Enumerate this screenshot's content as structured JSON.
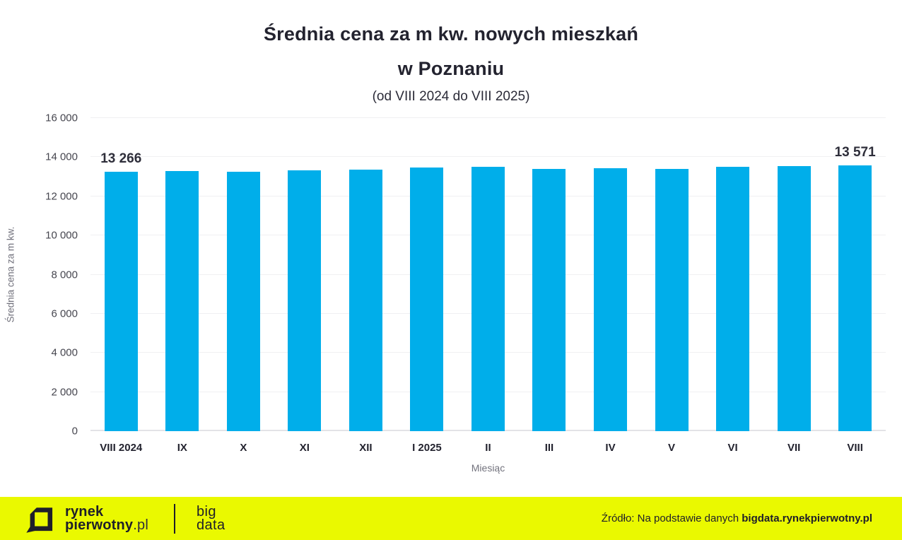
{
  "header": {
    "title_line1": "Średnia cena za m kw. nowych mieszkań",
    "title_line2": "w Poznaniu",
    "subtitle": "(od VIII 2024 do VIII 2025)"
  },
  "chart_data": {
    "type": "bar",
    "title": "Średnia cena za m kw. nowych mieszkań w Poznaniu",
    "subtitle": "(od VIII 2024 do VIII 2025)",
    "xlabel": "Miesiąc",
    "ylabel": "Średnia cena za m kw.",
    "ylim": [
      0,
      16000
    ],
    "ytick_step": 2000,
    "grid": true,
    "legend": false,
    "bar_color": "#00AEEA",
    "categories": [
      "VIII 2024",
      "IX",
      "X",
      "XI",
      "XII",
      "I 2025",
      "II",
      "III",
      "IV",
      "V",
      "VI",
      "VII",
      "VIII"
    ],
    "values": [
      13266,
      13305,
      13270,
      13340,
      13370,
      13460,
      13495,
      13390,
      13425,
      13415,
      13520,
      13550,
      13571
    ],
    "point_labels": [
      "13 266",
      "",
      "",
      "",
      "",
      "",
      "",
      "",
      "",
      "",
      "",
      "",
      "13 571"
    ],
    "yticks": [
      {
        "value": 0,
        "label": "0"
      },
      {
        "value": 2000,
        "label": "2 000"
      },
      {
        "value": 4000,
        "label": "4 000"
      },
      {
        "value": 6000,
        "label": "6 000"
      },
      {
        "value": 8000,
        "label": "8 000"
      },
      {
        "value": 10000,
        "label": "10 000"
      },
      {
        "value": 12000,
        "label": "12 000"
      },
      {
        "value": 14000,
        "label": "14 000"
      },
      {
        "value": 16000,
        "label": "16 000"
      }
    ]
  },
  "footer": {
    "logo": {
      "line1": "rynek",
      "line2": "pierwotny",
      "suffix": ".pl",
      "big": "big",
      "data": "data"
    },
    "source_prefix": "Źródło: Na podstawie danych ",
    "source_bold": "bigdata.rynekpierwotny.pl",
    "accent_yellow": "#EAF900",
    "accent_blue": "#00AEEA",
    "text_dark": "#1E1E2A"
  }
}
